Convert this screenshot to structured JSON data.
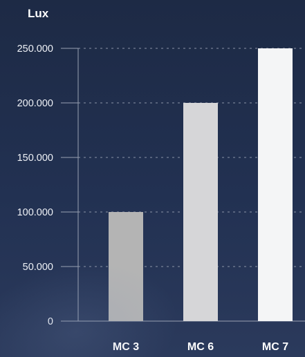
{
  "chart_data": {
    "type": "bar",
    "ylabel": "Lux",
    "categories": [
      "MC 3",
      "MC 6",
      "MC 7"
    ],
    "values": [
      100000,
      200000,
      250000
    ],
    "ylim": [
      0,
      250000
    ],
    "yticks": [
      0,
      50000,
      100000,
      150000,
      200000,
      250000
    ],
    "ytick_labels": [
      "0",
      "50.000",
      "100.000",
      "150.000",
      "200.000",
      "250.000"
    ],
    "bar_colors": [
      "#b4b4b4",
      "#d6d6d8",
      "#f4f5f6"
    ],
    "grid": "dashed horizontal",
    "legend": "none"
  }
}
